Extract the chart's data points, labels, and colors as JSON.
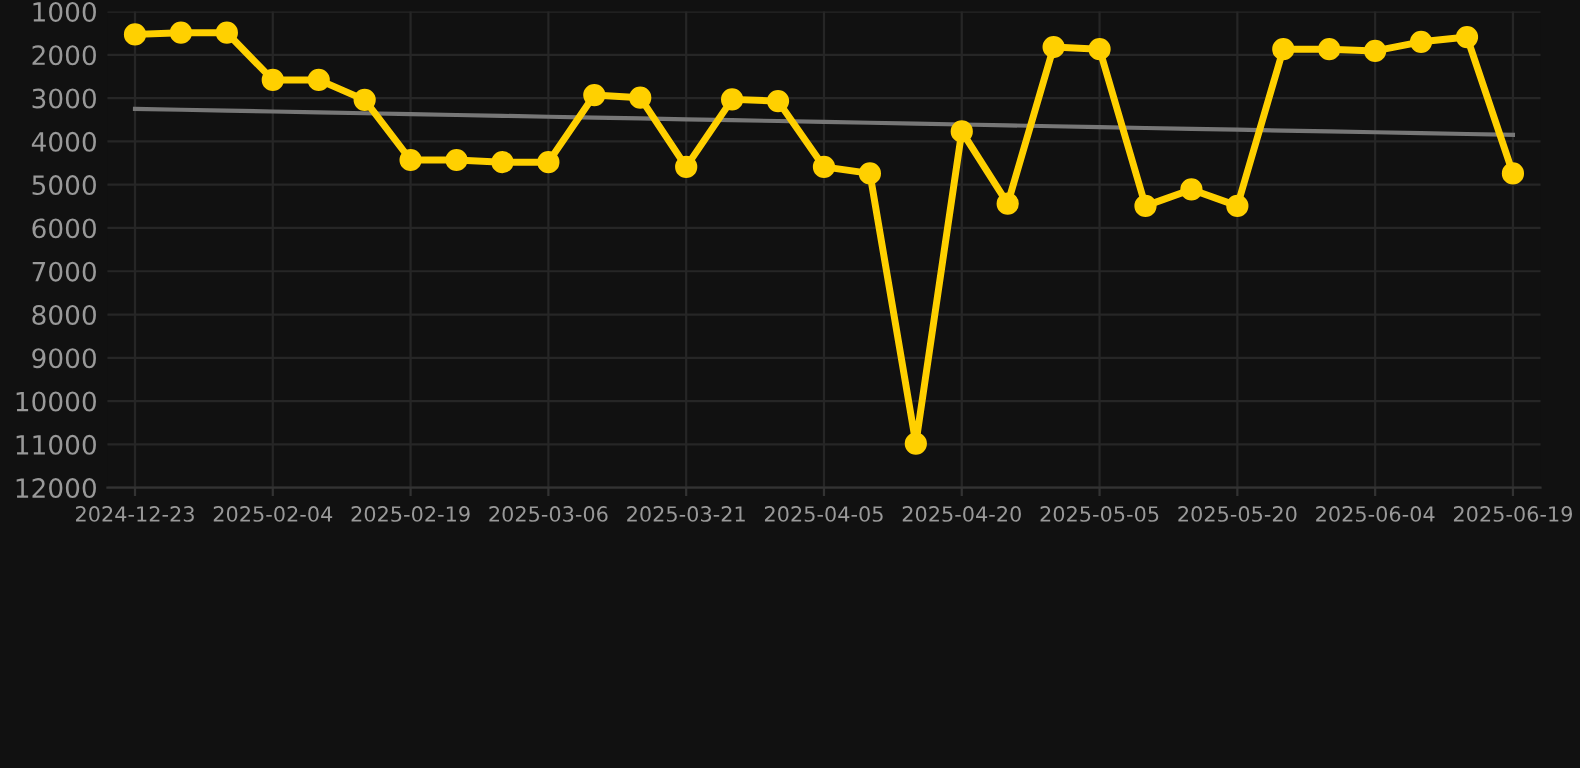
{
  "chart_data": {
    "type": "line",
    "categories": [
      "2024-12-23",
      null,
      null,
      "2025-02-04",
      null,
      null,
      "2025-02-19",
      null,
      null,
      "2025-03-06",
      null,
      null,
      "2025-03-21",
      null,
      null,
      "2025-04-05",
      null,
      null,
      "2025-04-20",
      null,
      null,
      "2025-05-05",
      null,
      null,
      "2025-05-20",
      null,
      null,
      "2025-06-04",
      null,
      null,
      "2025-06-19"
    ],
    "series": [
      {
        "color": "#ffd000",
        "marker": "circle",
        "values": [
          1530,
          1490,
          1490,
          2580,
          2580,
          3040,
          4430,
          4430,
          4480,
          4480,
          2930,
          2990,
          4590,
          3030,
          3070,
          4590,
          4740,
          10980,
          3770,
          5440,
          1820,
          1870,
          5490,
          5110,
          5490,
          1870,
          1870,
          1910,
          1700,
          1590,
          4740
        ]
      },
      {
        "color": "#777777",
        "marker": "none",
        "values": [
          3250,
          3270,
          3290,
          3310,
          3330,
          3350,
          3370,
          3390,
          3410,
          3430,
          3450,
          3470,
          3490,
          3510,
          3530,
          3550,
          3570,
          3590,
          3610,
          3630,
          3650,
          3670,
          3690,
          3710,
          3730,
          3750,
          3770,
          3790,
          3810,
          3830,
          3850
        ]
      }
    ],
    "ylim": [
      12000,
      1000
    ],
    "yticks": [
      1000,
      2000,
      3000,
      4000,
      5000,
      6000,
      7000,
      8000,
      9000,
      10000,
      11000,
      12000
    ],
    "grid": true,
    "line_style": "solid"
  }
}
